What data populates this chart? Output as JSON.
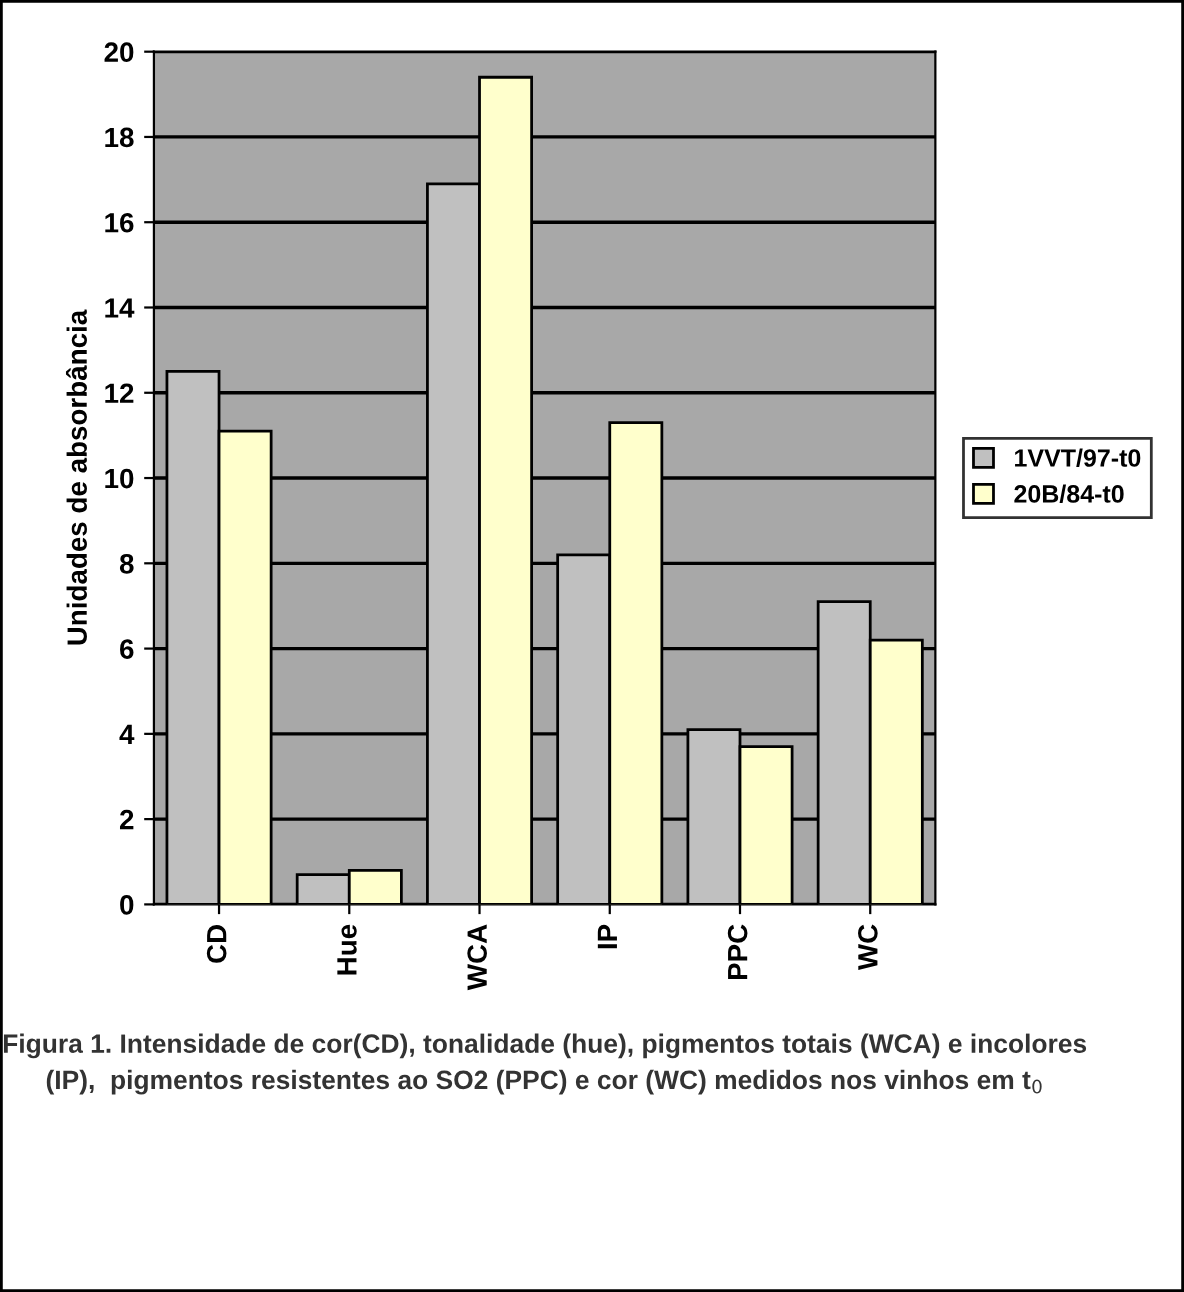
{
  "chart_data": {
    "type": "bar",
    "ylabel": "Unidades de absorbância",
    "categories": [
      "CD",
      "Hue",
      "WCA",
      "IP",
      "PPC",
      "WC"
    ],
    "series": [
      {
        "name": "1VVT/97-t0",
        "color": "#c0c0c0",
        "values": [
          12.5,
          0.7,
          16.9,
          8.2,
          4.1,
          7.1
        ]
      },
      {
        "name": "20B/84-t0",
        "color": "#ffffcc",
        "values": [
          11.1,
          0.8,
          19.4,
          11.3,
          3.7,
          6.2
        ]
      }
    ],
    "ylim": [
      0,
      20
    ],
    "yticks": [
      0,
      2,
      4,
      6,
      8,
      10,
      12,
      14,
      16,
      18,
      20
    ],
    "grid": "y",
    "legend": "right",
    "annotations": [
      "Figura 1. Intensidade de cor(CD), tonalidade (hue), pigmentos totais (WCA) e incolores (IP),  pigmentos resistentes ao SO2 (PPC) e cor (WC) medidos nos vinhos em t$_{0}$"
    ]
  }
}
